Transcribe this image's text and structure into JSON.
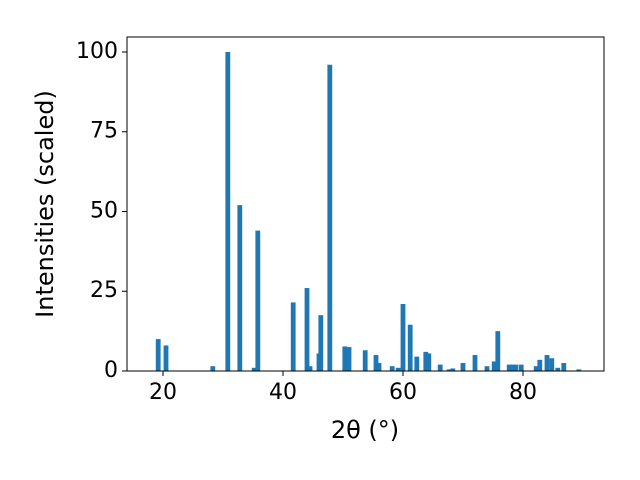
{
  "chart_data": {
    "type": "bar",
    "xlabel": "2θ (°)",
    "ylabel": "Intensities (scaled)",
    "color": "#1f77b4",
    "bar_width": 0.8,
    "x": [
      19.2,
      20.5,
      28.3,
      30.8,
      32.8,
      35.2,
      35.8,
      41.7,
      44.0,
      44.5,
      46.0,
      46.3,
      47.8,
      50.3,
      51.0,
      53.7,
      55.5,
      56.0,
      58.2,
      59.2,
      60.0,
      61.2,
      62.3,
      63.8,
      64.3,
      66.2,
      67.7,
      68.3,
      70.0,
      72.0,
      74.0,
      75.2,
      75.8,
      77.7,
      78.3,
      78.8,
      79.7,
      82.2,
      82.8,
      84.0,
      84.8,
      85.8,
      86.8,
      89.3
    ],
    "values": [
      10,
      8,
      1.5,
      100,
      52,
      1,
      44,
      21.5,
      26,
      1.5,
      5.5,
      17.5,
      96,
      7.7,
      7.5,
      6.5,
      5,
      2.5,
      1.5,
      1,
      21,
      14.5,
      4.5,
      6,
      5.5,
      2,
      0.5,
      0.8,
      2.5,
      5,
      1.5,
      3,
      12.5,
      2,
      2,
      2,
      2,
      1.5,
      3.5,
      5,
      4,
      1,
      2.5,
      0.5
    ],
    "xlim": [
      14,
      93.5
    ],
    "xticks": [
      20,
      40,
      60,
      80
    ],
    "ylim": [
      0,
      104.7
    ],
    "yticks": [
      0,
      25,
      50,
      75,
      100
    ]
  }
}
